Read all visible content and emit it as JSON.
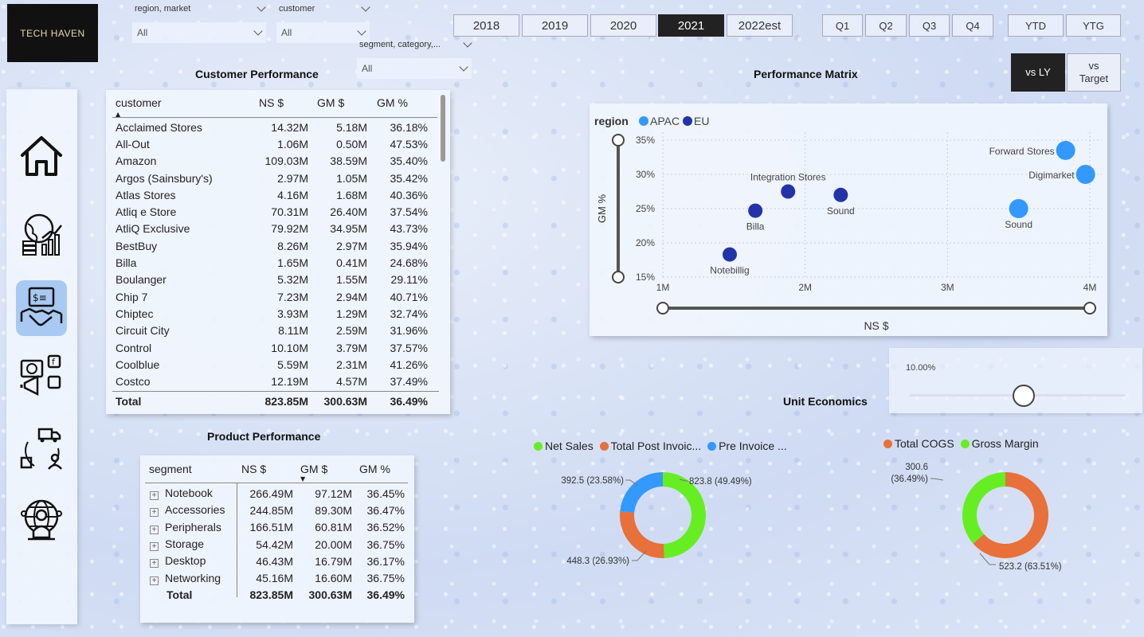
{
  "logo": "TECH HAVEN",
  "slicers": {
    "region_market": {
      "label": "region, market",
      "value": "All"
    },
    "customer": {
      "label": "customer",
      "value": "All"
    },
    "segment_category": {
      "label": "segment, category,...",
      "value": "All"
    }
  },
  "years": [
    "2018",
    "2019",
    "2020",
    "2021",
    "2022est"
  ],
  "selected_year": "2021",
  "quarters": [
    "Q1",
    "Q2",
    "Q3",
    "Q4"
  ],
  "period": [
    "YTD",
    "YTG"
  ],
  "compare": {
    "vs_ly": "vs LY",
    "vs_target": "vs Target"
  },
  "customer_performance": {
    "title": "Customer Performance",
    "headers": [
      "customer",
      "NS $",
      "GM $",
      "GM %"
    ],
    "rows": [
      [
        "Acclaimed Stores",
        "14.32M",
        "5.18M",
        "36.18%"
      ],
      [
        "All-Out",
        "1.06M",
        "0.50M",
        "47.53%"
      ],
      [
        "Amazon",
        "109.03M",
        "38.59M",
        "35.40%"
      ],
      [
        "Argos (Sainsbury's)",
        "2.97M",
        "1.05M",
        "35.42%"
      ],
      [
        "Atlas Stores",
        "4.16M",
        "1.68M",
        "40.36%"
      ],
      [
        "Atliq e Store",
        "70.31M",
        "26.40M",
        "37.54%"
      ],
      [
        "AtliQ Exclusive",
        "79.92M",
        "34.95M",
        "43.73%"
      ],
      [
        "BestBuy",
        "8.26M",
        "2.97M",
        "35.94%"
      ],
      [
        "Billa",
        "1.65M",
        "0.41M",
        "24.68%"
      ],
      [
        "Boulanger",
        "5.32M",
        "1.55M",
        "29.11%"
      ],
      [
        "Chip 7",
        "7.23M",
        "2.94M",
        "40.71%"
      ],
      [
        "Chiptec",
        "3.93M",
        "1.29M",
        "32.74%"
      ],
      [
        "Circuit City",
        "8.11M",
        "2.59M",
        "31.96%"
      ],
      [
        "Control",
        "10.10M",
        "3.79M",
        "37.57%"
      ],
      [
        "Coolblue",
        "5.59M",
        "2.31M",
        "41.26%"
      ],
      [
        "Costco",
        "12.19M",
        "4.57M",
        "37.49%"
      ]
    ],
    "total": [
      "Total",
      "823.85M",
      "300.63M",
      "36.49%"
    ]
  },
  "product_performance": {
    "title": "Product Performance",
    "headers": [
      "segment",
      "NS $",
      "GM $",
      "GM %"
    ],
    "rows": [
      [
        "Notebook",
        "266.49M",
        "97.12M",
        "36.45%"
      ],
      [
        "Accessories",
        "244.85M",
        "89.30M",
        "36.47%"
      ],
      [
        "Peripherals",
        "166.51M",
        "60.81M",
        "36.52%"
      ],
      [
        "Storage",
        "54.42M",
        "20.00M",
        "36.75%"
      ],
      [
        "Desktop",
        "46.43M",
        "16.79M",
        "36.17%"
      ],
      [
        "Networking",
        "45.16M",
        "16.60M",
        "36.75%"
      ]
    ],
    "total": [
      "Total",
      "823.85M",
      "300.63M",
      "36.49%"
    ]
  },
  "performance_matrix": {
    "title": "Performance Matrix",
    "legend_title": "region",
    "xlabel": "NS $",
    "ylabel": "GM %"
  },
  "unit_economics": {
    "title": "Unit Economics",
    "slider_value": "10.00%"
  },
  "colors": {
    "apac": "#3399ff",
    "eu": "#2233aa",
    "green": "#66ee22",
    "orange": "#e8703a",
    "blue": "#3399ff"
  },
  "chart_data": [
    {
      "type": "scatter",
      "title": "Performance Matrix",
      "xlabel": "NS $",
      "ylabel": "GM %",
      "xlim": [
        1,
        4
      ],
      "ylim": [
        15,
        35
      ],
      "x_ticks": [
        "1M",
        "2M",
        "3M",
        "4M"
      ],
      "y_ticks": [
        "15%",
        "20%",
        "25%",
        "30%",
        "35%"
      ],
      "series": [
        {
          "name": "APAC",
          "points": [
            {
              "label": "Forward Stores",
              "x": 3.83,
              "y": 33.5
            },
            {
              "label": "Digimarket",
              "x": 3.97,
              "y": 30.0
            },
            {
              "label": "Sound",
              "x": 3.5,
              "y": 25.0
            }
          ]
        },
        {
          "name": "EU",
          "points": [
            {
              "label": "Integration Stores",
              "x": 1.88,
              "y": 27.5
            },
            {
              "label": "Sound",
              "x": 2.25,
              "y": 27.0
            },
            {
              "label": "Billa",
              "x": 1.65,
              "y": 24.7
            },
            {
              "label": "Notebillig",
              "x": 1.47,
              "y": 18.3
            }
          ]
        }
      ]
    },
    {
      "type": "pie",
      "legend": [
        "Net Sales",
        "Total Post Invoic...",
        "Pre Invoice ..."
      ],
      "values": [
        823.8,
        448.3,
        392.5
      ],
      "labels": [
        "823.8 (49.49%)",
        "448.3 (26.93%)",
        "392.5 (23.58%)"
      ]
    },
    {
      "type": "pie",
      "legend": [
        "Total COGS",
        "Gross Margin"
      ],
      "values": [
        523.2,
        300.6
      ],
      "labels": [
        "523.2 (63.51%)",
        "300.6 (36.49%)"
      ]
    }
  ]
}
